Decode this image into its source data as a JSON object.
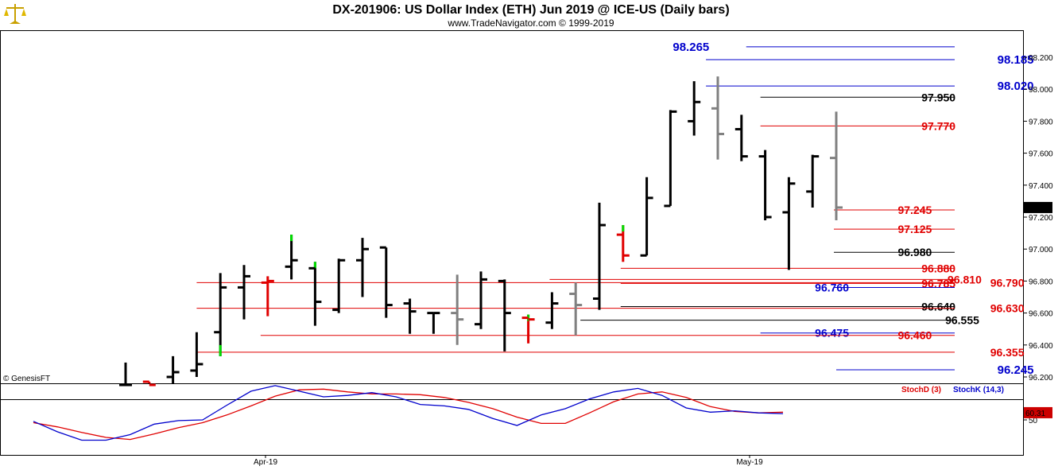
{
  "header": {
    "title": "DX-201906:  US Dollar Index (ETH) Jun 2019 @ ICE-US  (Daily bars)",
    "subtitle": "www.TradeNavigator.com © 1999-2019",
    "watermark": "© GenesisFT",
    "logo_icon": "scales-icon"
  },
  "colors": {
    "bar": "#000000",
    "bar_gray": "#808080",
    "bar_red": "#e00000",
    "bar_green": "#00dd00",
    "resistance_blue": "#0000cc",
    "support_red": "#dd0000",
    "level_black": "#000000",
    "stochD": "#dd0000",
    "stochK": "#0000cc"
  },
  "chart_data": [
    {
      "type": "ohlc",
      "title": "DX-201906:  US Dollar Index (ETH) Jun 2019 @ ICE-US  (Daily bars)",
      "ylim": [
        96.15,
        98.3
      ],
      "yticks": [
        "98.200",
        "98.000",
        "97.800",
        "97.600",
        "97.400",
        "97.200",
        "97.000",
        "96.800",
        "96.600",
        "96.400",
        "96.200"
      ],
      "current_price": "97.260",
      "x_labels": [
        {
          "label": "Apr-19",
          "index": 10
        },
        {
          "label": "May-19",
          "index": 30
        }
      ],
      "bars": [
        {
          "o": 96.15,
          "h": 96.29,
          "l": 96.15,
          "c": 96.15,
          "color": "black"
        },
        {
          "o": 96.17,
          "h": 96.17,
          "l": 96.15,
          "c": 96.15,
          "color": "red"
        },
        {
          "o": 96.2,
          "h": 96.33,
          "l": 96.16,
          "c": 96.23,
          "color": "black"
        },
        {
          "o": 96.24,
          "h": 96.48,
          "l": 96.2,
          "c": 96.28,
          "color": "black"
        },
        {
          "o": 96.48,
          "h": 96.85,
          "l": 96.33,
          "c": 96.76,
          "color": "black",
          "wick_color": "green"
        },
        {
          "o": 96.76,
          "h": 96.9,
          "l": 96.56,
          "c": 96.83,
          "color": "black"
        },
        {
          "o": 96.79,
          "h": 96.83,
          "l": 96.58,
          "c": 96.8,
          "color": "red"
        },
        {
          "o": 96.89,
          "h": 97.09,
          "l": 96.81,
          "c": 96.93,
          "color": "black",
          "wick_color": "green"
        },
        {
          "o": 96.88,
          "h": 96.92,
          "l": 96.52,
          "c": 96.67,
          "color": "black",
          "wick_color": "green"
        },
        {
          "o": 96.62,
          "h": 96.94,
          "l": 96.6,
          "c": 96.93,
          "color": "black"
        },
        {
          "o": 96.93,
          "h": 97.07,
          "l": 96.7,
          "c": 97.0,
          "color": "black"
        },
        {
          "o": 97.01,
          "h": 97.01,
          "l": 96.57,
          "c": 96.65,
          "color": "black"
        },
        {
          "o": 96.66,
          "h": 96.69,
          "l": 96.47,
          "c": 96.61,
          "color": "black"
        },
        {
          "o": 96.6,
          "h": 96.6,
          "l": 96.47,
          "c": 96.6,
          "color": "black"
        },
        {
          "o": 96.6,
          "h": 96.84,
          "l": 96.4,
          "c": 96.56,
          "color": "gray"
        },
        {
          "o": 96.53,
          "h": 96.86,
          "l": 96.5,
          "c": 96.81,
          "color": "black"
        },
        {
          "o": 96.8,
          "h": 96.81,
          "l": 96.36,
          "c": 96.6,
          "color": "black"
        },
        {
          "o": 96.57,
          "h": 96.59,
          "l": 96.41,
          "c": 96.56,
          "color": "red",
          "wick_color": "green"
        },
        {
          "o": 96.54,
          "h": 96.73,
          "l": 96.5,
          "c": 96.66,
          "color": "black"
        },
        {
          "o": 96.72,
          "h": 96.79,
          "l": 96.46,
          "c": 96.65,
          "color": "gray"
        },
        {
          "o": 96.69,
          "h": 97.29,
          "l": 96.62,
          "c": 97.15,
          "color": "black"
        },
        {
          "o": 97.09,
          "h": 97.15,
          "l": 96.92,
          "c": 96.96,
          "color": "red",
          "wick_color": "green"
        },
        {
          "o": 96.96,
          "h": 97.45,
          "l": 96.96,
          "c": 97.32,
          "color": "black"
        },
        {
          "o": 97.27,
          "h": 97.87,
          "l": 97.27,
          "c": 97.86,
          "color": "black"
        },
        {
          "o": 97.8,
          "h": 98.05,
          "l": 97.71,
          "c": 97.92,
          "color": "black"
        },
        {
          "o": 97.88,
          "h": 98.08,
          "l": 97.56,
          "c": 97.72,
          "color": "gray"
        },
        {
          "o": 97.75,
          "h": 97.84,
          "l": 97.55,
          "c": 97.58,
          "color": "black"
        },
        {
          "o": 97.58,
          "h": 97.62,
          "l": 97.18,
          "c": 97.2,
          "color": "black"
        },
        {
          "o": 97.23,
          "h": 97.45,
          "l": 96.87,
          "c": 97.41,
          "color": "black"
        },
        {
          "o": 97.36,
          "h": 97.59,
          "l": 97.26,
          "c": 97.58,
          "color": "black"
        },
        {
          "o": 97.57,
          "h": 97.86,
          "l": 97.18,
          "c": 97.26,
          "color": "gray"
        }
      ],
      "levels": [
        {
          "value": 98.265,
          "label": "98.265",
          "color": "blue",
          "x0": 26.2,
          "label_x": 23.1,
          "size": "big"
        },
        {
          "value": 98.185,
          "label": "98.185",
          "color": "blue",
          "x0": 24.5,
          "label_x": 36.8,
          "size": "big"
        },
        {
          "value": 98.02,
          "label": "98.020",
          "color": "blue",
          "x0": 24.5,
          "label_x": 36.8,
          "size": "big"
        },
        {
          "value": 97.95,
          "label": "97.950",
          "color": "black",
          "x0": 26.8,
          "label_x": 33.6,
          "size": "normal"
        },
        {
          "value": 97.77,
          "label": "97.770",
          "color": "red",
          "x0": 26.8,
          "label_x": 33.6,
          "size": "normal"
        },
        {
          "value": 97.245,
          "label": "97.245",
          "color": "red",
          "x0": 29.9,
          "label_x": 32.6,
          "size": "normal"
        },
        {
          "value": 97.125,
          "label": "97.125",
          "color": "red",
          "x0": 29.9,
          "label_x": 32.6,
          "size": "normal"
        },
        {
          "value": 96.98,
          "label": "96.980",
          "color": "black",
          "x0": 29.9,
          "label_x": 32.6,
          "size": "normal"
        },
        {
          "value": 96.88,
          "label": "96.880",
          "color": "red",
          "x0": 20.9,
          "label_x": 33.6,
          "size": "normal"
        },
        {
          "value": 96.81,
          "label": "96.810",
          "color": "red",
          "x0": 17.9,
          "label_x": 34.7,
          "size": "normal"
        },
        {
          "value": 96.79,
          "label": "96.790",
          "color": "red",
          "x0": 3.0,
          "label_x": 36.5,
          "size": "normal"
        },
        {
          "value": 96.785,
          "label": "96.785",
          "color": "red",
          "x0": 20.9,
          "label_x": 33.6,
          "size": "normal"
        },
        {
          "value": 96.76,
          "label": "96.760",
          "color": "blue",
          "x0": 29.9,
          "label_x": 29.1,
          "size": "normal"
        },
        {
          "value": 96.64,
          "label": "96.640",
          "color": "black",
          "x0": 20.9,
          "label_x": 33.6,
          "size": "normal"
        },
        {
          "value": 96.63,
          "label": "96.630",
          "color": "red",
          "x0": 3.0,
          "label_x": 36.5,
          "size": "normal"
        },
        {
          "value": 96.555,
          "label": "96.555",
          "color": "black",
          "x0": 19.2,
          "label_x": 34.6,
          "size": "normal"
        },
        {
          "value": 96.475,
          "label": "96.475",
          "color": "blue",
          "x0": 26.8,
          "label_x": 29.1,
          "size": "normal"
        },
        {
          "value": 96.46,
          "label": "96.460",
          "color": "red",
          "x0": 5.7,
          "label_x": 32.6,
          "size": "normal"
        },
        {
          "value": 96.355,
          "label": "96.355",
          "color": "red",
          "x0": 3.0,
          "label_x": 36.5,
          "size": "normal"
        },
        {
          "value": 96.245,
          "label": "96.245",
          "color": "blue",
          "x0": 30.0,
          "label_x": 36.8,
          "size": "big"
        }
      ]
    },
    {
      "type": "line",
      "title": "",
      "legend": [
        "StochD (3)",
        "StochK (14,3)"
      ],
      "ylim": [
        0,
        100
      ],
      "yticks": [
        "50"
      ],
      "reference_line": 80,
      "current_value": "60.31",
      "series": [
        {
          "name": "StochD (3)",
          "color": "red",
          "values": [
            46,
            40,
            32,
            25,
            22,
            30,
            39,
            46,
            57,
            70,
            84,
            93,
            94,
            90,
            87,
            87,
            86,
            82,
            75,
            66,
            54,
            45,
            45,
            60,
            76,
            87,
            90,
            82,
            69,
            62,
            60,
            61
          ]
        },
        {
          "name": "StochK (14,3)",
          "color": "blue",
          "values": [
            48,
            33,
            21,
            21,
            29,
            44,
            49,
            50,
            71,
            91,
            99,
            91,
            83,
            85,
            89,
            83,
            72,
            70,
            65,
            52,
            42,
            57,
            66,
            80,
            90,
            95,
            85,
            67,
            61,
            63,
            60,
            59
          ]
        }
      ]
    }
  ]
}
